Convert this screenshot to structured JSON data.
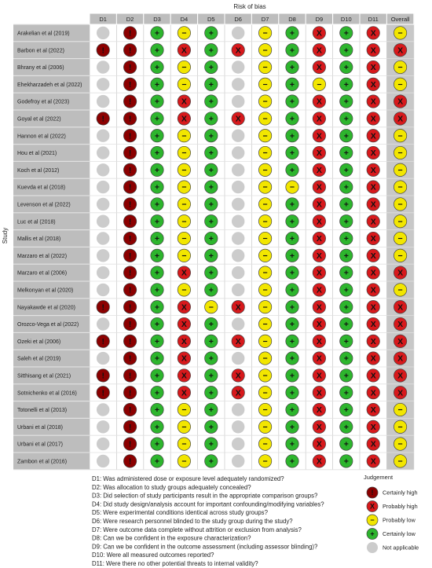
{
  "chart_data": {
    "type": "table",
    "title": "Risk of bias",
    "ylabel": "Study",
    "columns": [
      "D1",
      "D2",
      "D3",
      "D4",
      "D5",
      "D6",
      "D7",
      "D8",
      "D9",
      "D10",
      "D11",
      "Overall"
    ],
    "rows": [
      {
        "study": "Arakelian et al (2019)",
        "judgements": [
          "na",
          "ch",
          "cl",
          "pl",
          "cl",
          "na",
          "pl",
          "cl",
          "ph",
          "cl",
          "ph",
          "pl"
        ]
      },
      {
        "study": "Barbon et al (2022)",
        "judgements": [
          "ch",
          "ch",
          "cl",
          "ph",
          "cl",
          "ph",
          "pl",
          "cl",
          "ph",
          "cl",
          "ph",
          "ph"
        ]
      },
      {
        "study": "Bhrany et al (2006)",
        "judgements": [
          "na",
          "ch",
          "cl",
          "pl",
          "cl",
          "na",
          "pl",
          "cl",
          "ph",
          "cl",
          "ph",
          "pl"
        ]
      },
      {
        "study": "Ehekharzadeh et al (2022)",
        "judgements": [
          "na",
          "ch",
          "cl",
          "pl",
          "cl",
          "na",
          "pl",
          "cl",
          "pl",
          "cl",
          "ph",
          "pl"
        ]
      },
      {
        "study": "Godefroy et al (2023)",
        "judgements": [
          "na",
          "ch",
          "cl",
          "ph",
          "cl",
          "na",
          "pl",
          "cl",
          "ph",
          "cl",
          "ph",
          "ph"
        ]
      },
      {
        "study": "Goyal et al (2022)",
        "judgements": [
          "ch",
          "ch",
          "cl",
          "ph",
          "cl",
          "ph",
          "pl",
          "cl",
          "ph",
          "cl",
          "ph",
          "ph"
        ]
      },
      {
        "study": "Hannon et al (2022)",
        "judgements": [
          "na",
          "ch",
          "cl",
          "pl",
          "cl",
          "na",
          "pl",
          "cl",
          "ph",
          "cl",
          "ph",
          "pl"
        ]
      },
      {
        "study": "Hou et al (2021)",
        "judgements": [
          "na",
          "ch",
          "cl",
          "pl",
          "cl",
          "na",
          "pl",
          "cl",
          "ph",
          "cl",
          "ph",
          "pl"
        ]
      },
      {
        "study": "Koch et al (2012)",
        "judgements": [
          "na",
          "ch",
          "cl",
          "pl",
          "cl",
          "na",
          "pl",
          "cl",
          "ph",
          "cl",
          "ph",
          "pl"
        ]
      },
      {
        "study": "Kuevda et al (2018)",
        "judgements": [
          "na",
          "ch",
          "cl",
          "pl",
          "cl",
          "na",
          "pl",
          "pl",
          "ph",
          "cl",
          "ph",
          "pl"
        ]
      },
      {
        "study": "Levenson et al (2022)",
        "judgements": [
          "na",
          "ch",
          "cl",
          "pl",
          "cl",
          "na",
          "pl",
          "cl",
          "ph",
          "cl",
          "ph",
          "pl"
        ]
      },
      {
        "study": "Luc et al (2018)",
        "judgements": [
          "na",
          "ch",
          "cl",
          "pl",
          "cl",
          "na",
          "pl",
          "cl",
          "ph",
          "cl",
          "ph",
          "pl"
        ]
      },
      {
        "study": "Mallis et al (2018)",
        "judgements": [
          "na",
          "ch",
          "cl",
          "pl",
          "cl",
          "na",
          "pl",
          "cl",
          "ph",
          "cl",
          "ph",
          "pl"
        ]
      },
      {
        "study": "Marzaro et al (2022)",
        "judgements": [
          "na",
          "ch",
          "cl",
          "pl",
          "cl",
          "na",
          "pl",
          "cl",
          "ph",
          "cl",
          "ph",
          "pl"
        ]
      },
      {
        "study": "Marzaro et al (2006)",
        "judgements": [
          "na",
          "ch",
          "cl",
          "ph",
          "cl",
          "na",
          "pl",
          "cl",
          "ph",
          "cl",
          "ph",
          "ph"
        ]
      },
      {
        "study": "Melkonyan et al (2020)",
        "judgements": [
          "na",
          "ch",
          "cl",
          "pl",
          "cl",
          "na",
          "pl",
          "cl",
          "ph",
          "cl",
          "ph",
          "pl"
        ]
      },
      {
        "study": "Nayakawde et al (2020)",
        "judgements": [
          "ch",
          "ch",
          "cl",
          "ph",
          "pl",
          "ph",
          "pl",
          "cl",
          "ph",
          "cl",
          "ph",
          "ph"
        ]
      },
      {
        "study": "Orozco-Vega et al (2022)",
        "judgements": [
          "na",
          "ch",
          "cl",
          "ph",
          "cl",
          "na",
          "pl",
          "cl",
          "ph",
          "cl",
          "ph",
          "ph"
        ]
      },
      {
        "study": "Ozeki et al (2006)",
        "judgements": [
          "ch",
          "ch",
          "cl",
          "ph",
          "cl",
          "ph",
          "pl",
          "cl",
          "ph",
          "cl",
          "ph",
          "ph"
        ]
      },
      {
        "study": "Saleh et al (2019)",
        "judgements": [
          "na",
          "ch",
          "cl",
          "ph",
          "cl",
          "na",
          "pl",
          "cl",
          "ph",
          "cl",
          "ph",
          "ph"
        ]
      },
      {
        "study": "Sitthisang et al (2021)",
        "judgements": [
          "ch",
          "ch",
          "cl",
          "ph",
          "cl",
          "ph",
          "pl",
          "cl",
          "ph",
          "cl",
          "ph",
          "ph"
        ]
      },
      {
        "study": "Sotnichenko et al (2016)",
        "judgements": [
          "ch",
          "ch",
          "cl",
          "ph",
          "cl",
          "ph",
          "pl",
          "cl",
          "ph",
          "cl",
          "ph",
          "ph"
        ]
      },
      {
        "study": "Totonelli et al (2013)",
        "judgements": [
          "na",
          "ch",
          "cl",
          "pl",
          "cl",
          "na",
          "pl",
          "cl",
          "ph",
          "cl",
          "ph",
          "pl"
        ]
      },
      {
        "study": "Urbani et al (2018)",
        "judgements": [
          "na",
          "ch",
          "cl",
          "pl",
          "cl",
          "na",
          "pl",
          "cl",
          "ph",
          "cl",
          "ph",
          "pl"
        ]
      },
      {
        "study": "Urbani et al (2017)",
        "judgements": [
          "na",
          "ch",
          "cl",
          "pl",
          "cl",
          "na",
          "pl",
          "cl",
          "ph",
          "cl",
          "ph",
          "pl"
        ]
      },
      {
        "study": "Zambon et al (2016)",
        "judgements": [
          "na",
          "ch",
          "cl",
          "pl",
          "cl",
          "na",
          "pl",
          "cl",
          "ph",
          "cl",
          "ph",
          "pl"
        ]
      }
    ],
    "domain_notes": [
      "D1: Was administered dose or exposure level adequately randomized?",
      "D2: Was allocation to study groups adequately concealed?",
      "D3: Did selection of study participants result in the appropriate comparison groups?",
      "D4: Did study design/analysis account for important confounding/modifying variables?",
      "D5: Were experimental conditions identical across study groups?",
      "D6: Were research personnel blinded to the study group during the study?",
      "D7: Were outcome data complete without attrition or exclusion from analysis?",
      "D8: Can we be confident in the exposure characterization?",
      "D9: Can we be confident in the outcome assessment (including assessor blinding)?",
      "D10: Were all measured outcomes reported?",
      "D11: Were there no other potential threats to internal validity?"
    ],
    "legend": {
      "title": "Judgement",
      "items": [
        {
          "key": "ch",
          "label": "Certainly high",
          "color": "#8b0000",
          "symbol": "!"
        },
        {
          "key": "ph",
          "label": "Probably high",
          "color": "#d7191c",
          "symbol": "X"
        },
        {
          "key": "pl",
          "label": "Probably low",
          "color": "#f2e600",
          "symbol": "−"
        },
        {
          "key": "cl",
          "label": "Certainly low",
          "color": "#2db52d",
          "symbol": "+"
        },
        {
          "key": "na",
          "label": "Not applicable",
          "color": "#cccccc",
          "symbol": ""
        }
      ]
    }
  }
}
